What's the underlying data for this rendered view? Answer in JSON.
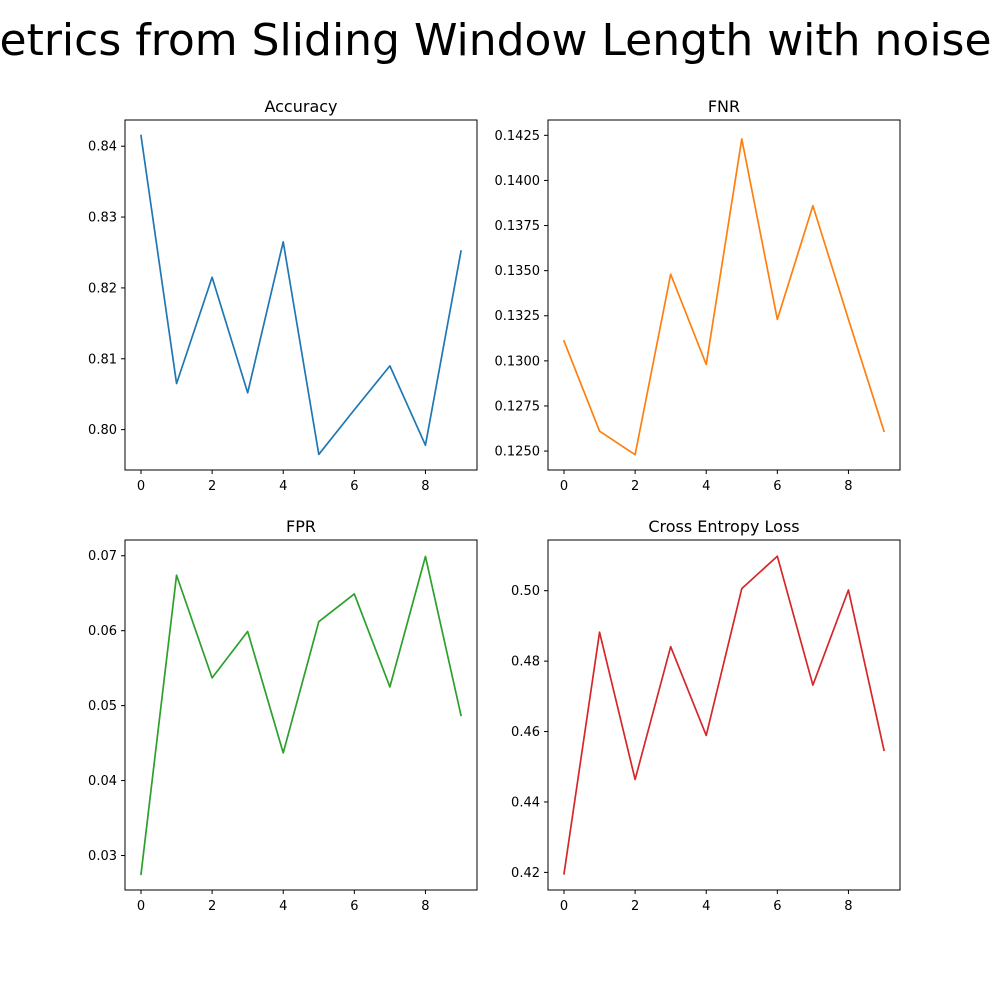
{
  "figure": {
    "suptitle": "Metrics from Sliding Window Length with noise N"
  },
  "chart_data": [
    {
      "type": "line",
      "title": "Accuracy",
      "xlabel": "",
      "ylabel": "",
      "x": [
        0,
        1,
        2,
        3,
        4,
        5,
        6,
        7,
        8,
        9
      ],
      "series": [
        {
          "values": [
            0.8415,
            0.8065,
            0.8215,
            0.8052,
            0.8265,
            0.7965,
            0.8028,
            0.809,
            0.7978,
            0.8252
          ],
          "color": "#1f77b4"
        }
      ],
      "xlim": [
        -0.45,
        9.45
      ],
      "ylim": [
        0.7943,
        0.8437
      ],
      "xticks": [
        0,
        2,
        4,
        6,
        8
      ],
      "xtick_labels": [
        "0",
        "2",
        "4",
        "6",
        "8"
      ],
      "yticks": [
        0.8,
        0.81,
        0.82,
        0.83,
        0.84
      ],
      "ytick_labels": [
        "0.80",
        "0.81",
        "0.82",
        "0.83",
        "0.84"
      ],
      "grid": false,
      "legend": "none"
    },
    {
      "type": "line",
      "title": "FNR",
      "xlabel": "",
      "ylabel": "",
      "x": [
        0,
        1,
        2,
        3,
        4,
        5,
        6,
        7,
        8,
        9
      ],
      "series": [
        {
          "values": [
            0.1311,
            0.1261,
            0.1248,
            0.1348,
            0.1298,
            0.1423,
            0.1323,
            0.1386,
            0.1323,
            0.1261
          ],
          "color": "#ff7f0e"
        }
      ],
      "xlim": [
        -0.45,
        9.45
      ],
      "ylim": [
        0.12395,
        0.14335
      ],
      "xticks": [
        0,
        2,
        4,
        6,
        8
      ],
      "xtick_labels": [
        "0",
        "2",
        "4",
        "6",
        "8"
      ],
      "yticks": [
        0.125,
        0.1275,
        0.13,
        0.1325,
        0.135,
        0.1375,
        0.14,
        0.1425
      ],
      "ytick_labels": [
        "0.1250",
        "0.1275",
        "0.1300",
        "0.1325",
        "0.1350",
        "0.1375",
        "0.1400",
        "0.1425"
      ],
      "grid": false,
      "legend": "none"
    },
    {
      "type": "line",
      "title": "FPR",
      "xlabel": "",
      "ylabel": "",
      "x": [
        0,
        1,
        2,
        3,
        4,
        5,
        6,
        7,
        8,
        9
      ],
      "series": [
        {
          "values": [
            0.0275,
            0.0674,
            0.0537,
            0.0599,
            0.0437,
            0.0612,
            0.0649,
            0.0525,
            0.0699,
            0.0487
          ],
          "color": "#2ca02c"
        }
      ],
      "xlim": [
        -0.45,
        9.45
      ],
      "ylim": [
        0.0254,
        0.0721
      ],
      "xticks": [
        0,
        2,
        4,
        6,
        8
      ],
      "xtick_labels": [
        "0",
        "2",
        "4",
        "6",
        "8"
      ],
      "yticks": [
        0.03,
        0.04,
        0.05,
        0.06,
        0.07
      ],
      "ytick_labels": [
        "0.03",
        "0.04",
        "0.05",
        "0.06",
        "0.07"
      ],
      "grid": false,
      "legend": "none"
    },
    {
      "type": "line",
      "title": "Cross Entropy Loss",
      "xlabel": "",
      "ylabel": "",
      "x": [
        0,
        1,
        2,
        3,
        4,
        5,
        6,
        7,
        8,
        9
      ],
      "series": [
        {
          "values": [
            0.4196,
            0.4882,
            0.4464,
            0.4841,
            0.4589,
            0.5006,
            0.5098,
            0.4732,
            0.5002,
            0.4547
          ],
          "color": "#d62728"
        }
      ],
      "xlim": [
        -0.45,
        9.45
      ],
      "ylim": [
        0.415,
        0.5144
      ],
      "xticks": [
        0,
        2,
        4,
        6,
        8
      ],
      "xtick_labels": [
        "0",
        "2",
        "4",
        "6",
        "8"
      ],
      "yticks": [
        0.42,
        0.44,
        0.46,
        0.48,
        0.5
      ],
      "ytick_labels": [
        "0.42",
        "0.44",
        "0.46",
        "0.48",
        "0.50"
      ],
      "grid": false,
      "legend": "none"
    }
  ]
}
